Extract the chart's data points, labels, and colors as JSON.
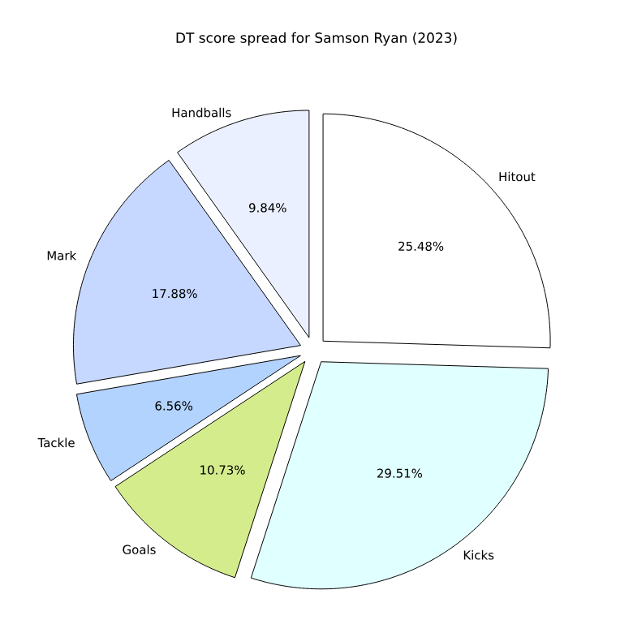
{
  "chart_data": {
    "type": "pie",
    "title": "DT score spread for Samson Ryan (2023)",
    "categories": [
      "Hitout",
      "Kicks",
      "Goals",
      "Tackle",
      "Mark",
      "Handballs"
    ],
    "values": [
      25.48,
      29.51,
      10.73,
      6.56,
      17.88,
      9.84
    ],
    "value_labels": [
      "25.48%",
      "29.51%",
      "10.73%",
      "6.56%",
      "17.88%",
      "9.84%"
    ],
    "colors": [
      "#ffffff",
      "#e0ffff",
      "#d4ec8c",
      "#b3d3ff",
      "#c6d8ff",
      "#eaf0ff"
    ],
    "legend": false
  }
}
